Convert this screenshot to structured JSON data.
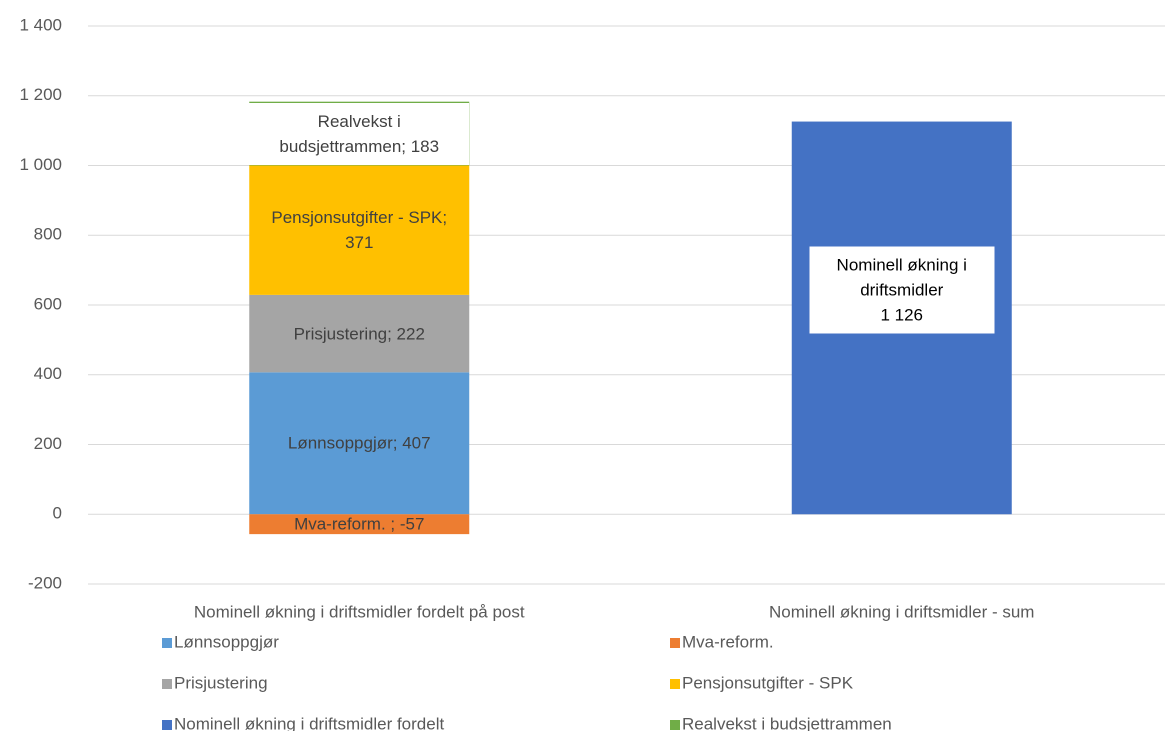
{
  "chart_data": {
    "type": "stacked_bar",
    "categories": [
      "Nominell økning i driftsmidler fordelt på post",
      "Nominell økning i driftsmidler - sum"
    ],
    "series": [
      {
        "name": "Lønnsoppgjør",
        "color": "#5b9bd5",
        "values": [
          407,
          null
        ],
        "value_labels": [
          "Lønnsoppgjør; 407",
          null
        ]
      },
      {
        "name": "Mva-reform.",
        "color": "#ed7d31",
        "values": [
          -57,
          null
        ],
        "value_labels": [
          "Mva-reform. ; -57",
          null
        ]
      },
      {
        "name": "Prisjustering",
        "color": "#a5a5a5",
        "values": [
          222,
          null
        ],
        "value_labels": [
          "Prisjustering; 222",
          null
        ]
      },
      {
        "name": "Pensjonsutgifter - SPK",
        "color": "#ffc000",
        "values": [
          371,
          null
        ],
        "value_labels": [
          "Pensjonsutgifter - SPK;\n371",
          null
        ]
      },
      {
        "name": "Nominell økning i driftsmidler fordelt",
        "color": "#4472c4",
        "values": [
          null,
          1126
        ],
        "value_labels": [
          null,
          "Nominell økning i\ndriftsmidler\n1 126"
        ]
      },
      {
        "name": "Realvekst i budsjettrammen",
        "color": "#70ad47",
        "values": [
          183,
          null
        ],
        "value_labels": [
          "Realvekst i\nbudsjettrammen; 183",
          null
        ]
      }
    ],
    "ylim": [
      -200,
      1400
    ],
    "yticks": [
      -200,
      0,
      200,
      400,
      600,
      800,
      {
        "value": 1000,
        "label": "1 000"
      },
      {
        "value": 1200,
        "label": "1 200"
      },
      {
        "value": 1400,
        "label": "1 400"
      }
    ],
    "grid": true,
    "legend": "bottom"
  }
}
